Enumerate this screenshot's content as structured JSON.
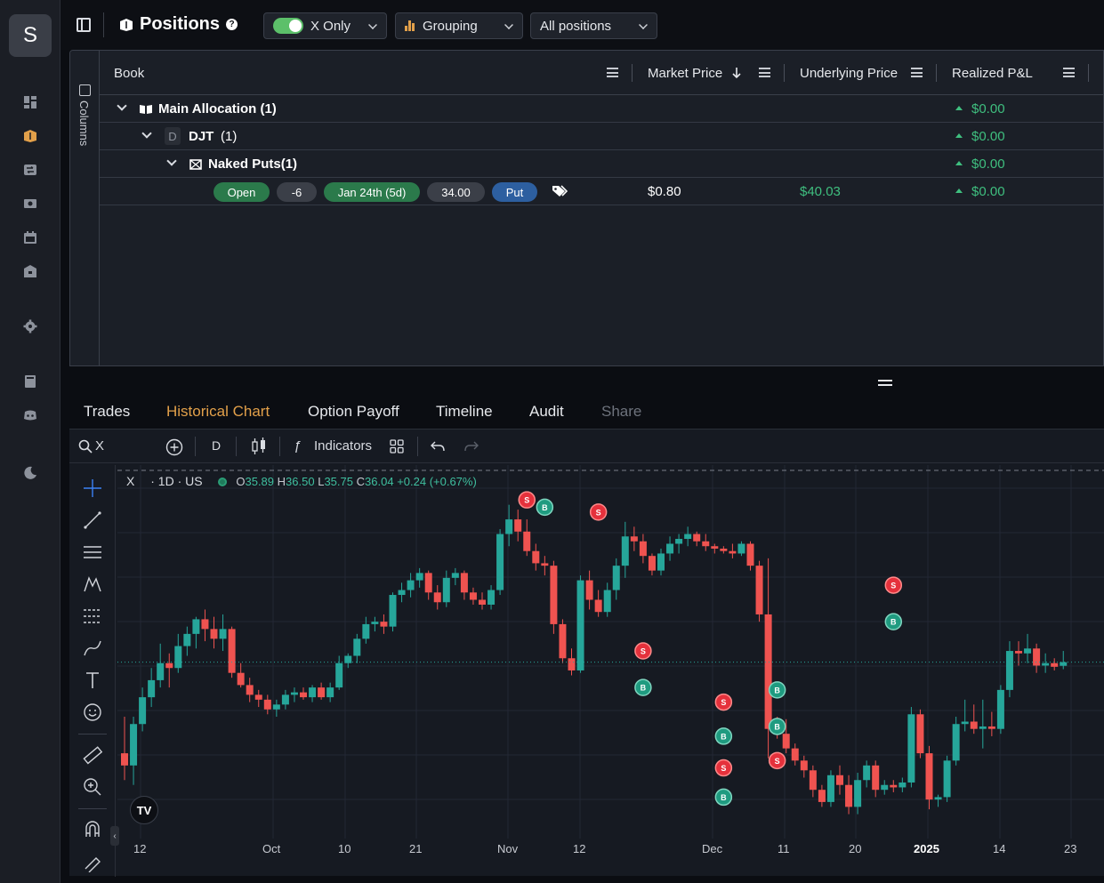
{
  "sidebar": {
    "avatar_initial": "S",
    "icons": [
      "dashboard-icon",
      "positions-icon",
      "trades-icon",
      "money-icon",
      "calendar-icon",
      "bank-icon",
      "settings-icon",
      "book-icon",
      "discord-icon",
      "theme-moon-icon"
    ],
    "active": "positions-icon"
  },
  "header": {
    "title": "Positions",
    "help": "?",
    "filter_toggle_label": "X Only",
    "grouping_label": "Grouping",
    "positions_select_label": "All positions"
  },
  "grid": {
    "columns_label": "Columns",
    "headers": {
      "book": "Book",
      "market_price": "Market Price",
      "underlying_price": "Underlying Price",
      "realized_pnl": "Realized P&L"
    },
    "rows": [
      {
        "label": "Main Allocation (1)",
        "pnl": "$0.00"
      },
      {
        "badge": "D",
        "label": "DJT",
        "count": "(1)",
        "pnl": "$0.00"
      },
      {
        "label": "Naked Puts(1)",
        "pnl": "$0.00"
      }
    ],
    "leaf": {
      "status": "Open",
      "quantity": "-6",
      "expiry": "Jan 24th (5d)",
      "strike": "34.00",
      "type": "Put",
      "market_price": "$0.80",
      "underlying_price": "$40.03",
      "pnl": "$0.00"
    }
  },
  "tabs": [
    "Trades",
    "Historical Chart",
    "Option Payoff",
    "Timeline",
    "Audit",
    "Share"
  ],
  "active_tab": "Historical Chart",
  "chart_toolbar": {
    "symbol": "X",
    "interval": "D",
    "indicators_label": "Indicators"
  },
  "chart_data": {
    "type": "candlestick",
    "symbol": "X",
    "interval_label": "· 1D · US",
    "ohlc": {
      "o": "35.89",
      "h": "36.50",
      "l": "35.75",
      "c": "36.04",
      "change": "+0.24 (+0.67%)"
    },
    "x_ticks": [
      "12",
      "Oct",
      "10",
      "21",
      "Nov",
      "12",
      "Dec",
      "11",
      "20",
      "2025",
      "14",
      "23"
    ],
    "candles": [
      [
        32.3,
        33.8,
        31.2,
        31.8
      ],
      [
        31.8,
        33.8,
        31.0,
        33.5
      ],
      [
        33.5,
        35.0,
        33.2,
        34.6
      ],
      [
        34.6,
        35.8,
        34.2,
        35.3
      ],
      [
        35.3,
        36.8,
        35.0,
        36.0
      ],
      [
        36.0,
        36.4,
        35.0,
        35.8
      ],
      [
        35.8,
        37.2,
        35.6,
        36.7
      ],
      [
        36.7,
        37.5,
        36.3,
        37.2
      ],
      [
        37.2,
        37.9,
        36.6,
        37.8
      ],
      [
        37.8,
        38.2,
        36.9,
        37.4
      ],
      [
        37.4,
        37.9,
        36.6,
        37.0
      ],
      [
        37.0,
        38.0,
        36.5,
        37.4
      ],
      [
        37.4,
        37.5,
        35.4,
        35.6
      ],
      [
        35.6,
        36.0,
        35.0,
        35.1
      ],
      [
        35.1,
        35.4,
        34.4,
        34.7
      ],
      [
        34.7,
        34.9,
        34.2,
        34.5
      ],
      [
        34.5,
        34.7,
        33.9,
        34.1
      ],
      [
        34.1,
        34.5,
        33.8,
        34.3
      ],
      [
        34.3,
        34.9,
        34.1,
        34.7
      ],
      [
        34.7,
        35.0,
        34.4,
        34.8
      ],
      [
        34.8,
        35.0,
        34.5,
        34.6
      ],
      [
        34.6,
        35.1,
        34.4,
        35.0
      ],
      [
        35.0,
        35.2,
        34.5,
        34.6
      ],
      [
        34.6,
        35.2,
        34.4,
        35.0
      ],
      [
        35.0,
        36.3,
        34.9,
        36.0
      ],
      [
        36.0,
        36.4,
        35.8,
        36.3
      ],
      [
        36.3,
        37.2,
        36.0,
        37.0
      ],
      [
        37.0,
        37.9,
        36.8,
        37.6
      ],
      [
        37.6,
        37.9,
        37.3,
        37.7
      ],
      [
        37.7,
        38.0,
        37.2,
        37.5
      ],
      [
        37.5,
        38.9,
        37.3,
        38.8
      ],
      [
        38.8,
        39.3,
        38.5,
        39.0
      ],
      [
        39.0,
        39.7,
        38.7,
        39.4
      ],
      [
        39.4,
        39.9,
        39.1,
        39.7
      ],
      [
        39.7,
        39.8,
        38.6,
        38.9
      ],
      [
        38.9,
        39.2,
        38.2,
        38.5
      ],
      [
        38.5,
        39.8,
        38.3,
        39.5
      ],
      [
        39.5,
        39.9,
        39.2,
        39.7
      ],
      [
        39.7,
        39.8,
        38.6,
        38.9
      ],
      [
        38.9,
        39.1,
        38.4,
        38.6
      ],
      [
        38.6,
        38.9,
        38.2,
        38.4
      ],
      [
        38.4,
        39.2,
        38.2,
        39.0
      ],
      [
        39.0,
        41.5,
        38.8,
        41.3
      ],
      [
        41.3,
        42.5,
        40.8,
        41.9
      ],
      [
        41.9,
        42.3,
        41.0,
        41.4
      ],
      [
        41.4,
        41.9,
        40.4,
        40.6
      ],
      [
        40.6,
        40.9,
        39.8,
        40.1
      ],
      [
        40.1,
        40.4,
        39.6,
        40.0
      ],
      [
        40.0,
        40.2,
        37.2,
        37.6
      ],
      [
        37.6,
        37.8,
        36.0,
        36.2
      ],
      [
        36.2,
        36.6,
        35.5,
        35.7
      ],
      [
        35.7,
        39.6,
        35.6,
        39.4
      ],
      [
        39.4,
        39.8,
        38.2,
        38.6
      ],
      [
        38.6,
        39.0,
        37.9,
        38.1
      ],
      [
        38.1,
        39.3,
        37.9,
        39.0
      ],
      [
        39.0,
        40.3,
        38.6,
        40.0
      ],
      [
        40.0,
        41.8,
        39.5,
        41.2
      ],
      [
        41.2,
        41.6,
        40.6,
        41.0
      ],
      [
        41.0,
        41.3,
        40.1,
        40.4
      ],
      [
        40.4,
        40.5,
        39.6,
        39.8
      ],
      [
        39.8,
        40.7,
        39.6,
        40.5
      ],
      [
        40.5,
        41.2,
        40.2,
        40.9
      ],
      [
        40.9,
        41.3,
        40.5,
        41.1
      ],
      [
        41.1,
        41.6,
        40.8,
        41.3
      ],
      [
        41.3,
        41.4,
        40.8,
        41.0
      ],
      [
        41.0,
        41.3,
        40.6,
        40.8
      ],
      [
        40.8,
        40.9,
        40.5,
        40.7
      ],
      [
        40.7,
        40.8,
        40.5,
        40.6
      ],
      [
        40.6,
        40.9,
        40.3,
        40.5
      ],
      [
        40.5,
        41.0,
        40.4,
        40.9
      ],
      [
        40.9,
        41.0,
        39.8,
        40.0
      ],
      [
        40.0,
        40.2,
        37.7,
        38.0
      ],
      [
        38.0,
        40.3,
        32.1,
        33.3
      ],
      [
        33.3,
        33.8,
        32.9,
        33.1
      ],
      [
        33.1,
        33.7,
        32.3,
        32.5
      ],
      [
        32.5,
        32.7,
        31.8,
        32.0
      ],
      [
        32.0,
        32.2,
        31.3,
        31.6
      ],
      [
        31.6,
        31.8,
        30.5,
        30.8
      ],
      [
        30.8,
        31.0,
        30.1,
        30.3
      ],
      [
        30.3,
        31.6,
        30.1,
        31.4
      ],
      [
        31.4,
        31.8,
        30.6,
        31.0
      ],
      [
        31.0,
        31.4,
        29.8,
        30.1
      ],
      [
        30.1,
        31.5,
        29.8,
        31.2
      ],
      [
        31.2,
        32.0,
        30.9,
        31.8
      ],
      [
        31.8,
        32.0,
        30.5,
        30.8
      ],
      [
        30.8,
        31.2,
        30.6,
        31.0
      ],
      [
        31.0,
        31.2,
        30.7,
        30.9
      ],
      [
        30.9,
        31.3,
        30.7,
        31.1
      ],
      [
        31.1,
        34.2,
        30.9,
        33.9
      ],
      [
        33.9,
        34.1,
        32.1,
        32.3
      ],
      [
        32.3,
        32.6,
        30.0,
        30.4
      ],
      [
        30.4,
        30.6,
        30.1,
        30.5
      ],
      [
        30.5,
        32.2,
        30.3,
        32.0
      ],
      [
        32.0,
        33.8,
        31.8,
        33.5
      ],
      [
        33.5,
        34.5,
        33.2,
        33.6
      ],
      [
        33.6,
        34.3,
        33.1,
        33.3
      ],
      [
        33.3,
        34.5,
        32.5,
        33.4
      ],
      [
        33.4,
        34.0,
        33.0,
        33.3
      ],
      [
        33.3,
        35.1,
        33.1,
        34.9
      ],
      [
        34.9,
        36.9,
        34.6,
        36.5
      ],
      [
        36.5,
        36.9,
        35.9,
        36.4
      ],
      [
        36.4,
        37.2,
        36.0,
        36.6
      ],
      [
        36.6,
        36.8,
        35.6,
        35.9
      ],
      [
        35.9,
        36.4,
        35.6,
        36.0
      ],
      [
        36.0,
        36.2,
        35.7,
        35.85
      ],
      [
        35.89,
        36.5,
        35.75,
        36.04
      ]
    ],
    "markers": [
      {
        "candle": 45,
        "type": "S",
        "price": 42.7
      },
      {
        "candle": 47,
        "type": "B",
        "price": 42.4
      },
      {
        "candle": 53,
        "type": "S",
        "price": 42.2
      },
      {
        "candle": 58,
        "type": "S",
        "price": 36.5
      },
      {
        "candle": 58,
        "type": "B",
        "price": 35.0
      },
      {
        "candle": 67,
        "type": "S",
        "price": 34.4
      },
      {
        "candle": 67,
        "type": "B",
        "price": 33.0
      },
      {
        "candle": 67,
        "type": "S",
        "price": 31.7
      },
      {
        "candle": 67,
        "type": "B",
        "price": 30.5
      },
      {
        "candle": 73,
        "type": "B",
        "price": 34.9
      },
      {
        "candle": 73,
        "type": "B",
        "price": 33.4
      },
      {
        "candle": 73,
        "type": "S",
        "price": 32.0
      },
      {
        "candle": 86,
        "type": "S",
        "price": 39.2
      },
      {
        "candle": 86,
        "type": "B",
        "price": 37.7
      }
    ],
    "last_price": 36.04,
    "colors": {
      "up": "#26a69a",
      "down": "#ef5350",
      "marker_sell": "#e5313c",
      "marker_buy": "#1f9b80"
    }
  }
}
